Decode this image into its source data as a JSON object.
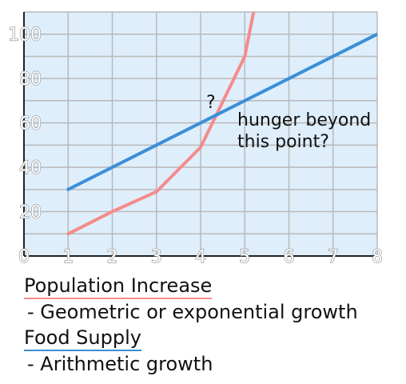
{
  "chart_data": {
    "type": "line",
    "x": [
      1,
      2,
      3,
      4,
      5,
      5.2
    ],
    "series": [
      {
        "key": "population",
        "color": "#f58b8b",
        "x": [
          1,
          2,
          3,
          4,
          5,
          5.2
        ],
        "values": [
          10,
          20,
          29,
          49,
          90,
          110
        ]
      },
      {
        "key": "food",
        "color": "#3a8fd9",
        "x": [
          1,
          8
        ],
        "values": [
          30,
          100
        ]
      }
    ],
    "xlim": [
      0,
      8
    ],
    "ylim": [
      0,
      110
    ],
    "xticks": [
      "0",
      "1",
      "2",
      "3",
      "4",
      "5",
      "6",
      "7",
      "8"
    ],
    "yticks": [
      "20",
      "40",
      "60",
      "80",
      "100"
    ],
    "grid": true,
    "background": "#dfeefb",
    "annotations": [
      {
        "text": "?"
      },
      {
        "text": "hunger beyond"
      },
      {
        "text": "this point?"
      }
    ]
  },
  "legend": {
    "population": {
      "title": "Population Increase",
      "desc": " - Geometric or exponential growth",
      "color": "#f58b8b"
    },
    "food": {
      "title": "Food Supply",
      "desc": " - Arithmetic growth",
      "color": "#3a8fd9"
    }
  }
}
